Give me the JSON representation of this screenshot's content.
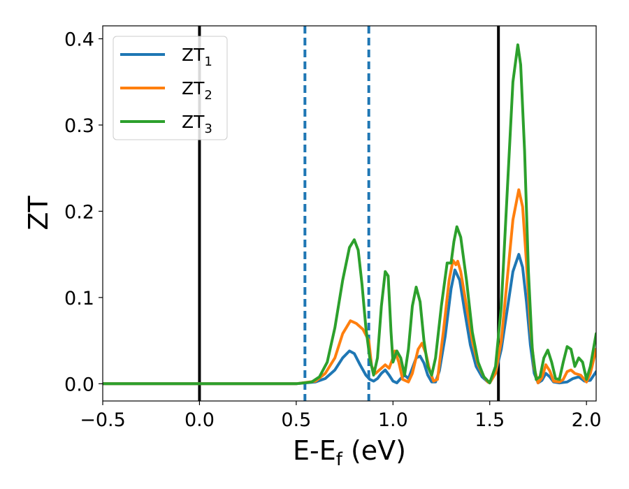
{
  "chart_data": {
    "type": "line",
    "xlabel": "E-E",
    "xlabel_sub": "f",
    "xlabel_unit": " (eV)",
    "ylabel": "ZT",
    "xlim": [
      -0.5,
      2.05
    ],
    "ylim": [
      -0.02,
      0.415
    ],
    "xticks": [
      -0.5,
      0.0,
      0.5,
      1.0,
      1.5,
      2.0
    ],
    "xtick_labels": [
      "−0.5",
      "0.0",
      "0.5",
      "1.0",
      "1.5",
      "2.0"
    ],
    "yticks": [
      0.0,
      0.1,
      0.2,
      0.3,
      0.4
    ],
    "ytick_labels": [
      "0.0",
      "0.1",
      "0.2",
      "0.3",
      "0.4"
    ],
    "legend_position": "top-left",
    "vlines": [
      {
        "x": 0.0,
        "style": "solid",
        "color": "#000000"
      },
      {
        "x": 1.545,
        "style": "solid",
        "color": "#000000"
      },
      {
        "x": 0.545,
        "style": "dashed",
        "color": "#1f77b4"
      },
      {
        "x": 0.875,
        "style": "dashed",
        "color": "#1f77b4"
      }
    ],
    "series": [
      {
        "name": "ZT",
        "sub": "1",
        "color": "#1f77b4",
        "points": [
          [
            -0.5,
            0
          ],
          [
            0.5,
            0
          ],
          [
            0.6,
            0.002
          ],
          [
            0.65,
            0.006
          ],
          [
            0.7,
            0.016
          ],
          [
            0.74,
            0.03
          ],
          [
            0.775,
            0.038
          ],
          [
            0.8,
            0.035
          ],
          [
            0.83,
            0.022
          ],
          [
            0.86,
            0.01
          ],
          [
            0.88,
            0.005
          ],
          [
            0.9,
            0.003
          ],
          [
            0.92,
            0.006
          ],
          [
            0.94,
            0.012
          ],
          [
            0.96,
            0.016
          ],
          [
            0.98,
            0.01
          ],
          [
            1.0,
            0.003
          ],
          [
            1.02,
            0.001
          ],
          [
            1.04,
            0.006
          ],
          [
            1.06,
            0.01
          ],
          [
            1.08,
            0.006
          ],
          [
            1.1,
            0.018
          ],
          [
            1.12,
            0.03
          ],
          [
            1.14,
            0.032
          ],
          [
            1.16,
            0.024
          ],
          [
            1.18,
            0.01
          ],
          [
            1.2,
            0.002
          ],
          [
            1.22,
            0.002
          ],
          [
            1.24,
            0.015
          ],
          [
            1.27,
            0.055
          ],
          [
            1.3,
            0.11
          ],
          [
            1.32,
            0.132
          ],
          [
            1.345,
            0.12
          ],
          [
            1.37,
            0.085
          ],
          [
            1.4,
            0.045
          ],
          [
            1.43,
            0.02
          ],
          [
            1.46,
            0.008
          ],
          [
            1.49,
            0.002
          ],
          [
            1.5,
            0.001
          ],
          [
            1.53,
            0.012
          ],
          [
            1.56,
            0.04
          ],
          [
            1.59,
            0.085
          ],
          [
            1.62,
            0.13
          ],
          [
            1.65,
            0.15
          ],
          [
            1.67,
            0.135
          ],
          [
            1.69,
            0.095
          ],
          [
            1.71,
            0.045
          ],
          [
            1.73,
            0.012
          ],
          [
            1.75,
            0.001
          ],
          [
            1.77,
            0.004
          ],
          [
            1.79,
            0.012
          ],
          [
            1.81,
            0.008
          ],
          [
            1.83,
            0.002
          ],
          [
            1.86,
            0.001
          ],
          [
            1.9,
            0.002
          ],
          [
            1.93,
            0.006
          ],
          [
            1.96,
            0.008
          ],
          [
            1.99,
            0.003
          ],
          [
            2.02,
            0.004
          ],
          [
            2.05,
            0.014
          ]
        ]
      },
      {
        "name": "ZT",
        "sub": "2",
        "color": "#ff7f0e",
        "points": [
          [
            -0.5,
            0
          ],
          [
            0.5,
            0
          ],
          [
            0.6,
            0.003
          ],
          [
            0.65,
            0.012
          ],
          [
            0.7,
            0.03
          ],
          [
            0.74,
            0.058
          ],
          [
            0.78,
            0.073
          ],
          [
            0.81,
            0.07
          ],
          [
            0.845,
            0.063
          ],
          [
            0.875,
            0.05
          ],
          [
            0.89,
            0.02
          ],
          [
            0.91,
            0.012
          ],
          [
            0.94,
            0.018
          ],
          [
            0.96,
            0.022
          ],
          [
            0.98,
            0.018
          ],
          [
            1.0,
            0.03
          ],
          [
            1.01,
            0.038
          ],
          [
            1.03,
            0.025
          ],
          [
            1.05,
            0.005
          ],
          [
            1.08,
            0.002
          ],
          [
            1.1,
            0.012
          ],
          [
            1.13,
            0.04
          ],
          [
            1.15,
            0.047
          ],
          [
            1.17,
            0.035
          ],
          [
            1.19,
            0.015
          ],
          [
            1.21,
            0.003
          ],
          [
            1.23,
            0.005
          ],
          [
            1.26,
            0.06
          ],
          [
            1.29,
            0.12
          ],
          [
            1.31,
            0.143
          ],
          [
            1.325,
            0.138
          ],
          [
            1.335,
            0.142
          ],
          [
            1.35,
            0.13
          ],
          [
            1.38,
            0.09
          ],
          [
            1.41,
            0.05
          ],
          [
            1.44,
            0.022
          ],
          [
            1.47,
            0.008
          ],
          [
            1.49,
            0.002
          ],
          [
            1.5,
            0.001
          ],
          [
            1.53,
            0.012
          ],
          [
            1.56,
            0.05
          ],
          [
            1.59,
            0.12
          ],
          [
            1.62,
            0.19
          ],
          [
            1.65,
            0.225
          ],
          [
            1.67,
            0.205
          ],
          [
            1.69,
            0.14
          ],
          [
            1.71,
            0.065
          ],
          [
            1.73,
            0.018
          ],
          [
            1.75,
            0.001
          ],
          [
            1.77,
            0.007
          ],
          [
            1.79,
            0.022
          ],
          [
            1.81,
            0.015
          ],
          [
            1.83,
            0.003
          ],
          [
            1.86,
            0.002
          ],
          [
            1.88,
            0.005
          ],
          [
            1.9,
            0.014
          ],
          [
            1.92,
            0.016
          ],
          [
            1.94,
            0.012
          ],
          [
            1.97,
            0.01
          ],
          [
            2.0,
            0.002
          ],
          [
            2.02,
            0.012
          ],
          [
            2.05,
            0.04
          ]
        ]
      },
      {
        "name": "ZT",
        "sub": "3",
        "color": "#2ca02c",
        "points": [
          [
            -0.5,
            0
          ],
          [
            0.5,
            0
          ],
          [
            0.58,
            0.002
          ],
          [
            0.62,
            0.008
          ],
          [
            0.66,
            0.025
          ],
          [
            0.7,
            0.065
          ],
          [
            0.74,
            0.12
          ],
          [
            0.775,
            0.158
          ],
          [
            0.8,
            0.167
          ],
          [
            0.82,
            0.155
          ],
          [
            0.84,
            0.115
          ],
          [
            0.86,
            0.065
          ],
          [
            0.88,
            0.03
          ],
          [
            0.9,
            0.01
          ],
          [
            0.92,
            0.03
          ],
          [
            0.94,
            0.09
          ],
          [
            0.96,
            0.13
          ],
          [
            0.975,
            0.125
          ],
          [
            0.99,
            0.06
          ],
          [
            1.0,
            0.025
          ],
          [
            1.02,
            0.038
          ],
          [
            1.04,
            0.03
          ],
          [
            1.06,
            0.01
          ],
          [
            1.08,
            0.04
          ],
          [
            1.1,
            0.09
          ],
          [
            1.12,
            0.112
          ],
          [
            1.14,
            0.095
          ],
          [
            1.16,
            0.05
          ],
          [
            1.18,
            0.02
          ],
          [
            1.2,
            0.01
          ],
          [
            1.22,
            0.03
          ],
          [
            1.25,
            0.09
          ],
          [
            1.28,
            0.14
          ],
          [
            1.3,
            0.14
          ],
          [
            1.315,
            0.165
          ],
          [
            1.33,
            0.182
          ],
          [
            1.35,
            0.17
          ],
          [
            1.38,
            0.12
          ],
          [
            1.41,
            0.06
          ],
          [
            1.44,
            0.025
          ],
          [
            1.47,
            0.008
          ],
          [
            1.5,
            0.001
          ],
          [
            1.53,
            0.02
          ],
          [
            1.56,
            0.09
          ],
          [
            1.59,
            0.22
          ],
          [
            1.62,
            0.35
          ],
          [
            1.645,
            0.393
          ],
          [
            1.66,
            0.37
          ],
          [
            1.68,
            0.27
          ],
          [
            1.7,
            0.13
          ],
          [
            1.72,
            0.04
          ],
          [
            1.74,
            0.005
          ],
          [
            1.76,
            0.008
          ],
          [
            1.78,
            0.03
          ],
          [
            1.8,
            0.039
          ],
          [
            1.82,
            0.025
          ],
          [
            1.84,
            0.006
          ],
          [
            1.86,
            0.005
          ],
          [
            1.88,
            0.025
          ],
          [
            1.9,
            0.043
          ],
          [
            1.92,
            0.04
          ],
          [
            1.94,
            0.02
          ],
          [
            1.96,
            0.03
          ],
          [
            1.98,
            0.025
          ],
          [
            2.0,
            0.005
          ],
          [
            2.02,
            0.02
          ],
          [
            2.05,
            0.058
          ]
        ]
      }
    ]
  }
}
